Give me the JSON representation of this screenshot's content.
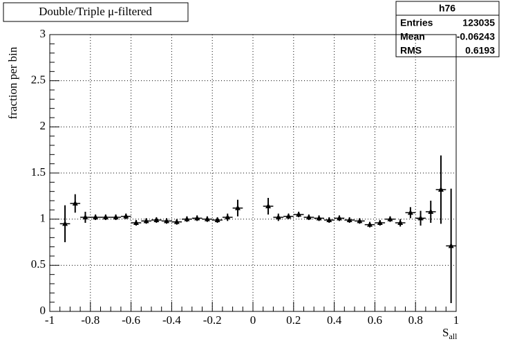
{
  "chart_data": {
    "type": "scatter",
    "title": "Double/Triple μ-filtered",
    "x_label": "S",
    "x_label_sub": "all",
    "y_label": "fraction per bin",
    "stats": {
      "name": "h76",
      "rows": [
        [
          "Entries",
          123035
        ],
        [
          "Mean",
          -0.06243
        ],
        [
          "RMS",
          0.6193
        ]
      ]
    },
    "xlim": [
      -1,
      1
    ],
    "ylim": [
      0,
      3
    ],
    "xticks": [
      -1,
      -0.8,
      -0.6,
      -0.4,
      -0.2,
      0,
      0.2,
      0.4,
      0.6,
      0.8,
      1
    ],
    "yticks": [
      0,
      0.5,
      1,
      1.5,
      2,
      2.5,
      3
    ],
    "grid": true,
    "color": "#000000",
    "xerr": 0.025,
    "x": [
      -0.925,
      -0.875,
      -0.825,
      -0.775,
      -0.725,
      -0.675,
      -0.625,
      -0.575,
      -0.525,
      -0.475,
      -0.425,
      -0.375,
      -0.325,
      -0.275,
      -0.225,
      -0.175,
      -0.125,
      -0.075,
      0.075,
      0.125,
      0.175,
      0.225,
      0.275,
      0.325,
      0.375,
      0.425,
      0.475,
      0.525,
      0.575,
      0.625,
      0.675,
      0.725,
      0.775,
      0.825,
      0.875,
      0.925,
      0.975
    ],
    "values": [
      0.95,
      1.17,
      1.02,
      1.02,
      1.02,
      1.02,
      1.03,
      0.96,
      0.98,
      0.99,
      0.98,
      0.97,
      1.0,
      1.01,
      1.0,
      0.99,
      1.02,
      1.12,
      1.14,
      1.02,
      1.03,
      1.05,
      1.02,
      1.01,
      0.99,
      1.01,
      0.99,
      0.98,
      0.94,
      0.96,
      1.0,
      0.96,
      1.07,
      1.01,
      1.08,
      1.32,
      0.71
    ],
    "errors": [
      0.2,
      0.1,
      0.06,
      0.03,
      0.03,
      0.03,
      0.03,
      0.03,
      0.03,
      0.03,
      0.03,
      0.03,
      0.03,
      0.03,
      0.03,
      0.03,
      0.04,
      0.09,
      0.09,
      0.04,
      0.03,
      0.03,
      0.03,
      0.03,
      0.03,
      0.03,
      0.03,
      0.03,
      0.03,
      0.03,
      0.03,
      0.04,
      0.06,
      0.08,
      0.12,
      0.37,
      0.62
    ]
  }
}
